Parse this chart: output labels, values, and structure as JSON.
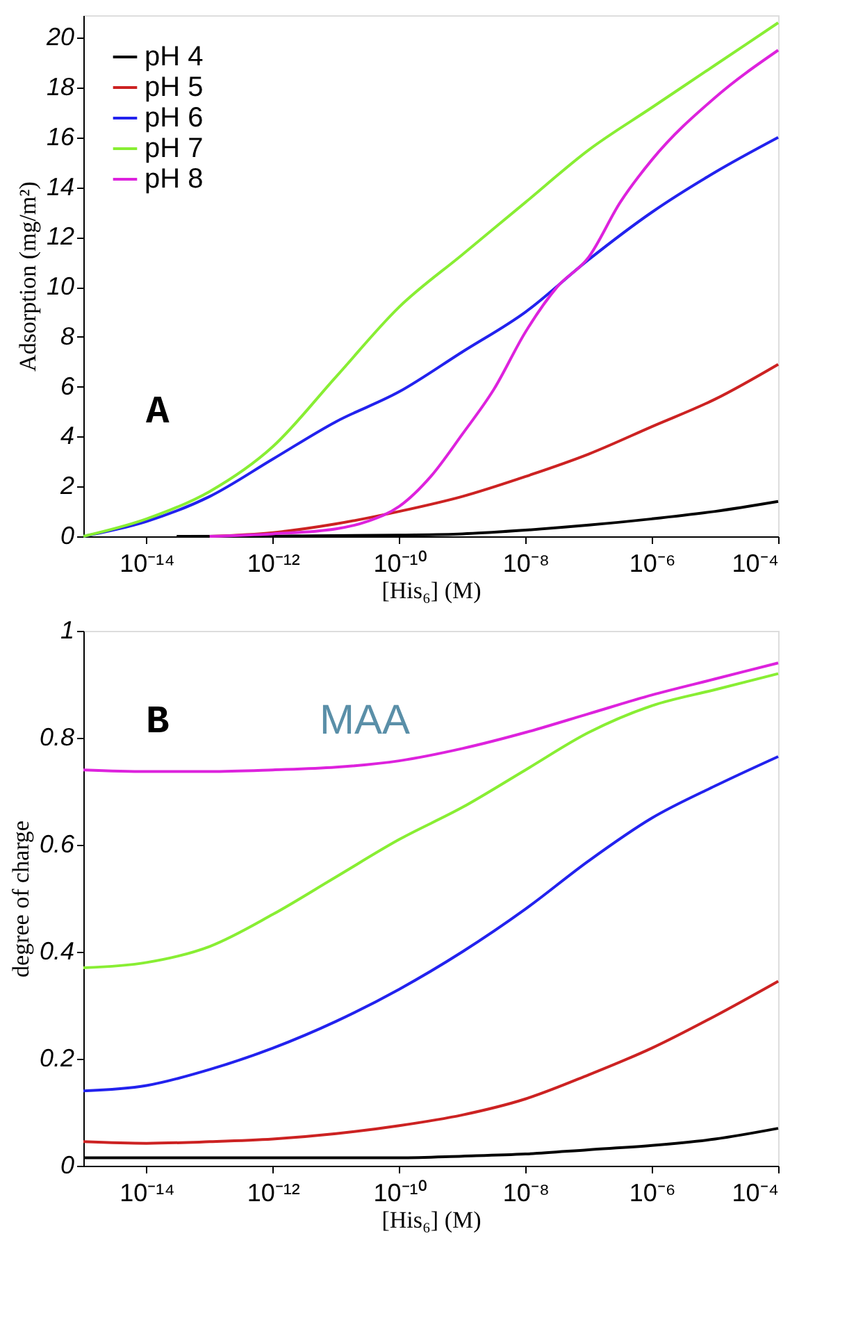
{
  "chart_data": [
    {
      "type": "line",
      "xlabel": "[His₆] (M)",
      "ylabel": "Adsorption (mg/m²)",
      "log": "x",
      "grid": false,
      "legend": "top left",
      "marker": "none",
      "line_style": "solid",
      "xlim": [
        1e-15,
        0.0001
      ],
      "xticks": [
        {
          "value": 1e-14,
          "label": "10⁻¹⁴"
        },
        {
          "value": 1e-12,
          "label": "10⁻¹²"
        },
        {
          "value": 1e-10,
          "label": "10⁻¹⁰"
        },
        {
          "value": 1e-08,
          "label": "10⁻⁸"
        },
        {
          "value": 1e-06,
          "label": "10⁻⁶"
        },
        {
          "value": 0.0001,
          "label": "10⁻⁴"
        }
      ],
      "ylim": [
        0,
        20.9
      ],
      "yticks": [
        0,
        2,
        4,
        6,
        8,
        10,
        12,
        14,
        16,
        18,
        20
      ],
      "annotations": [
        "A"
      ],
      "series": [
        {
          "name": "pH 4",
          "color": "#000000",
          "x": [
            3e-14,
            1e-12,
            1e-10,
            1e-09,
            1e-08,
            1e-07,
            1e-06,
            1e-05,
            0.0001
          ],
          "values": [
            0,
            0.01,
            0.05,
            0.1,
            0.25,
            0.45,
            0.7,
            1.0,
            1.4
          ]
        },
        {
          "name": "pH 5",
          "color": "#cc2222",
          "x": [
            1e-13,
            1e-12,
            1e-11,
            1e-10,
            1e-09,
            1e-08,
            1e-07,
            1e-06,
            1e-05,
            0.0001
          ],
          "values": [
            0,
            0.15,
            0.5,
            1.0,
            1.6,
            2.4,
            3.3,
            4.4,
            5.5,
            6.9
          ]
        },
        {
          "name": "pH 6",
          "color": "#2222ee",
          "x": [
            1e-15,
            1e-14,
            1e-13,
            1e-12,
            1e-11,
            1e-10,
            1e-09,
            1e-08,
            1e-07,
            1e-06,
            1e-05,
            0.0001
          ],
          "values": [
            0,
            0.6,
            1.6,
            3.1,
            4.6,
            5.8,
            7.4,
            9.0,
            11.1,
            13.0,
            14.6,
            16.0
          ]
        },
        {
          "name": "pH 7",
          "color": "#88ee33",
          "x": [
            1e-15,
            1e-14,
            1e-13,
            1e-12,
            1e-11,
            1e-10,
            1e-09,
            1e-08,
            1e-07,
            1e-06,
            1e-05,
            0.0001
          ],
          "values": [
            0,
            0.7,
            1.8,
            3.6,
            6.4,
            9.2,
            11.3,
            13.4,
            15.5,
            17.2,
            18.9,
            20.6
          ]
        },
        {
          "name": "pH 8",
          "color": "#dd22dd",
          "x": [
            1e-13,
            1e-12,
            1e-11,
            3.16e-11,
            1e-10,
            3.16e-10,
            1e-09,
            3.16e-09,
            1e-08,
            3.16e-08,
            1e-07,
            3.16e-07,
            1e-06,
            1e-05,
            0.0001
          ],
          "values": [
            0,
            0.1,
            0.3,
            0.6,
            1.2,
            2.4,
            4.1,
            5.9,
            8.2,
            10.0,
            11.2,
            13.4,
            15.1,
            17.6,
            19.5
          ]
        }
      ]
    },
    {
      "type": "line",
      "xlabel": "[His₆] (M)",
      "ylabel": "degree of charge",
      "log": "x",
      "grid": false,
      "marker": "none",
      "line_style": "solid",
      "xlim": [
        1e-15,
        0.0001
      ],
      "xticks": [
        {
          "value": 1e-14,
          "label": "10⁻¹⁴"
        },
        {
          "value": 1e-12,
          "label": "10⁻¹²"
        },
        {
          "value": 1e-10,
          "label": "10⁻¹⁰"
        },
        {
          "value": 1e-08,
          "label": "10⁻⁸"
        },
        {
          "value": 1e-06,
          "label": "10⁻⁶"
        },
        {
          "value": 0.0001,
          "label": "10⁻⁴"
        }
      ],
      "ylim": [
        0,
        1
      ],
      "yticks": [
        0,
        0.2,
        0.4,
        0.6,
        0.8,
        1
      ],
      "annotations": [
        "B",
        "MAA"
      ],
      "series": [
        {
          "color": "#000000",
          "x": [
            1e-15,
            1e-12,
            1e-10,
            1e-09,
            1e-08,
            1e-07,
            1e-06,
            1e-05,
            0.0001
          ],
          "values": [
            0.015,
            0.015,
            0.015,
            0.018,
            0.022,
            0.03,
            0.038,
            0.05,
            0.07
          ]
        },
        {
          "color": "#cc2222",
          "x": [
            1e-15,
            1e-14,
            1e-13,
            1e-12,
            1e-11,
            1e-10,
            1e-09,
            1e-08,
            1e-07,
            1e-06,
            1e-05,
            0.0001
          ],
          "values": [
            0.045,
            0.042,
            0.045,
            0.05,
            0.06,
            0.075,
            0.095,
            0.125,
            0.17,
            0.22,
            0.28,
            0.345
          ]
        },
        {
          "color": "#2222ee",
          "x": [
            1e-15,
            1e-14,
            1e-13,
            1e-12,
            1e-11,
            1e-10,
            1e-09,
            1e-08,
            1e-07,
            1e-06,
            1e-05,
            0.0001
          ],
          "values": [
            0.14,
            0.15,
            0.18,
            0.22,
            0.27,
            0.33,
            0.4,
            0.48,
            0.57,
            0.65,
            0.71,
            0.765
          ]
        },
        {
          "color": "#88ee33",
          "x": [
            1e-15,
            1e-14,
            1e-13,
            1e-12,
            1e-11,
            1e-10,
            1e-09,
            1e-08,
            1e-07,
            1e-06,
            1e-05,
            0.0001
          ],
          "values": [
            0.37,
            0.38,
            0.41,
            0.47,
            0.54,
            0.61,
            0.67,
            0.74,
            0.81,
            0.86,
            0.89,
            0.92
          ]
        },
        {
          "color": "#dd22dd",
          "x": [
            1e-15,
            1e-14,
            1e-13,
            1e-12,
            1e-11,
            1e-10,
            1e-09,
            1e-08,
            1e-07,
            1e-06,
            1e-05,
            0.0001
          ],
          "values": [
            0.74,
            0.737,
            0.737,
            0.74,
            0.745,
            0.757,
            0.78,
            0.81,
            0.845,
            0.88,
            0.91,
            0.94
          ]
        }
      ]
    }
  ]
}
